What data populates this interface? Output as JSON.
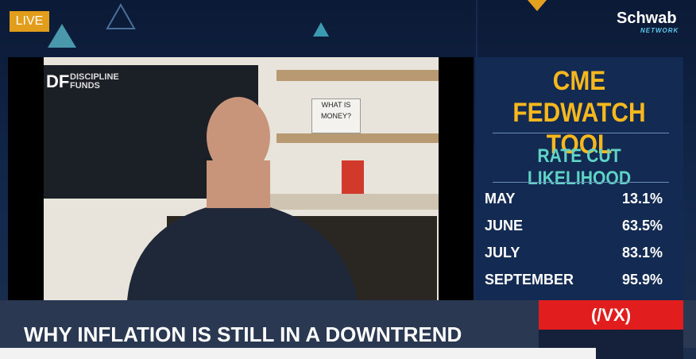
{
  "header": {
    "live": "LIVE",
    "brand": "Schwab",
    "brand_sub": "NETWORK"
  },
  "video": {
    "backdrop_logo": "DF",
    "backdrop_text": "DISCIPLINE FUNDS",
    "sign": "WHAT IS MONEY?"
  },
  "panel": {
    "title": "CME FEDWATCH TOOL",
    "subtitle": "RATE CUT LIKELIHOOD",
    "rows": [
      [
        "MAY",
        "13.1%"
      ],
      [
        "JUNE",
        "63.5%"
      ],
      [
        "JULY",
        "83.1%"
      ],
      [
        "SEPTEMBER",
        "95.9%"
      ]
    ]
  },
  "lower_third": {
    "headline": "WHY INFLATION IS STILL IN A DOWNTREND",
    "ticker": "(/VX)"
  }
}
